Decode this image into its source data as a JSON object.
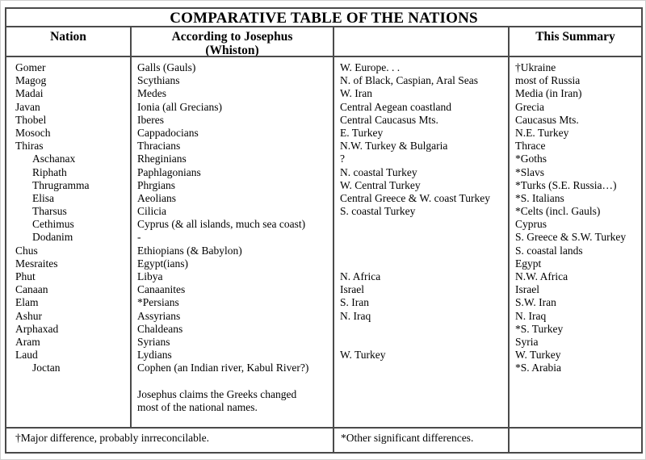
{
  "title": "COMPARATIVE TABLE OF THE NATIONS",
  "headers": {
    "nation": "Nation",
    "josephus_line1": "According to Josephus",
    "josephus_line2": "(Whiston)",
    "modern": "",
    "summary": "This Summary"
  },
  "body": {
    "nation_lines": [
      {
        "t": "Gomer"
      },
      {
        "t": "Magog"
      },
      {
        "t": "Madai"
      },
      {
        "t": "Javan"
      },
      {
        "t": "Thobel"
      },
      {
        "t": "Mosoch"
      },
      {
        "t": "Thiras"
      },
      {
        "t": "Aschanax",
        "indent": 1
      },
      {
        "t": "Riphath",
        "indent": 1
      },
      {
        "t": "Thrugramma",
        "indent": 1
      },
      {
        "t": "Elisa",
        "indent": 1
      },
      {
        "t": "Tharsus",
        "indent": 1
      },
      {
        "t": "Cethimus",
        "indent": 1
      },
      {
        "t": "Dodanim",
        "indent": 1
      },
      {
        "t": "Chus"
      },
      {
        "t": "Mesraites"
      },
      {
        "t": "Phut"
      },
      {
        "t": "Canaan"
      },
      {
        "t": "Elam"
      },
      {
        "t": "Ashur"
      },
      {
        "t": "Arphaxad"
      },
      {
        "t": "Aram"
      },
      {
        "t": "Laud"
      },
      {
        "t": "Joctan",
        "indent": 1
      }
    ],
    "josephus_lines": [
      {
        "t": "Galls (Gauls)"
      },
      {
        "t": "Scythians"
      },
      {
        "t": "Medes"
      },
      {
        "t": "Ionia (all Grecians)"
      },
      {
        "t": "Iberes"
      },
      {
        "t": "Cappadocians"
      },
      {
        "t": "Thracians"
      },
      {
        "t": "Rheginians"
      },
      {
        "t": "Paphlagonians"
      },
      {
        "t": "Phrgians"
      },
      {
        "t": "Aeolians"
      },
      {
        "t": "Cilicia"
      },
      {
        "t": "Cyprus (& all islands, much sea coast)"
      },
      {
        "t": "-"
      },
      {
        "t": "Ethiopians (& Babylon)"
      },
      {
        "t": "Egypt(ians)"
      },
      {
        "t": "Libya"
      },
      {
        "t": "Canaanites"
      },
      {
        "t": "*Persians"
      },
      {
        "t": "Assyrians"
      },
      {
        "t": "Chaldeans"
      },
      {
        "t": "Syrians"
      },
      {
        "t": "Lydians"
      },
      {
        "t": "Cophen (an Indian river, Kabul River?)"
      },
      {
        "t": ""
      },
      {
        "t": "Josephus claims the Greeks changed"
      },
      {
        "t": "most of the national names."
      }
    ],
    "modern_lines": [
      {
        "t": "W. Europe. . ."
      },
      {
        "t": "N. of Black, Caspian, Aral Seas"
      },
      {
        "t": "W. Iran"
      },
      {
        "t": "Central Aegean coastland"
      },
      {
        "t": "Central Caucasus Mts."
      },
      {
        "t": "E. Turkey"
      },
      {
        "t": "N.W. Turkey & Bulgaria"
      },
      {
        "t": "?"
      },
      {
        "t": "N. coastal Turkey"
      },
      {
        "t": "W. Central Turkey"
      },
      {
        "t": "Central Greece & W. coast Turkey"
      },
      {
        "t": "S. coastal Turkey"
      },
      {
        "t": ""
      },
      {
        "t": ""
      },
      {
        "t": ""
      },
      {
        "t": ""
      },
      {
        "t": "N. Africa"
      },
      {
        "t": "Israel"
      },
      {
        "t": "S. Iran"
      },
      {
        "t": "N. Iraq"
      },
      {
        "t": ""
      },
      {
        "t": ""
      },
      {
        "t": "W. Turkey"
      }
    ],
    "summary_lines": [
      {
        "t": "†Ukraine"
      },
      {
        "t": "most of Russia"
      },
      {
        "t": "Media (in Iran)"
      },
      {
        "t": "Grecia"
      },
      {
        "t": "Caucasus Mts."
      },
      {
        "t": "N.E. Turkey"
      },
      {
        "t": "Thrace"
      },
      {
        "t": "*Goths"
      },
      {
        "t": "*Slavs"
      },
      {
        "t": "*Turks (S.E. Russia…)"
      },
      {
        "t": "*S. Italians"
      },
      {
        "t": "*Celts (incl. Gauls)"
      },
      {
        "t": "Cyprus"
      },
      {
        "t": "S. Greece & S.W. Turkey"
      },
      {
        "t": "S. coastal lands"
      },
      {
        "t": "Egypt"
      },
      {
        "t": "N.W. Africa"
      },
      {
        "t": "Israel"
      },
      {
        "t": "S.W. Iran"
      },
      {
        "t": "N. Iraq"
      },
      {
        "t": "*S. Turkey"
      },
      {
        "t": "Syria"
      },
      {
        "t": "W. Turkey"
      },
      {
        "t": "*S. Arabia"
      }
    ]
  },
  "footer": {
    "major_note": "†Major difference, probably inrreconcilable.",
    "other_note": "*Other significant differences.",
    "right_cell": ""
  }
}
